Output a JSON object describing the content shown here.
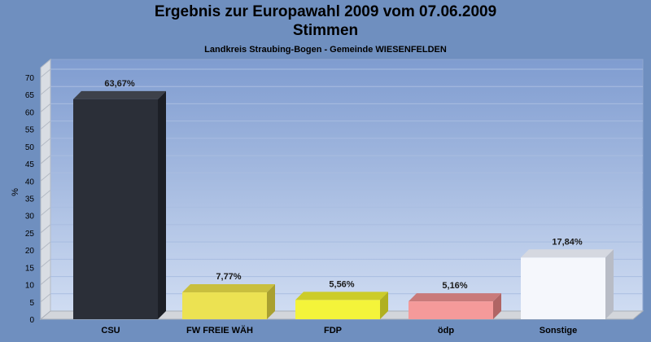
{
  "chart_data": {
    "type": "bar",
    "title": "Ergebnis zur Europawahl 2009 vom 07.06.2009",
    "title_line2": "Stimmen",
    "subtitle": "Landkreis Straubing-Bogen - Gemeinde WIESENFELDEN",
    "ylabel": "%",
    "xlabel": "",
    "ylim": [
      0,
      70
    ],
    "yticks": [
      0,
      5,
      10,
      15,
      20,
      25,
      30,
      35,
      40,
      45,
      50,
      55,
      60,
      65,
      70
    ],
    "grid": true,
    "legend": "none",
    "categories": [
      "CSU",
      "FW FREIE WÄH",
      "FDP",
      "ödp",
      "Sonstige"
    ],
    "values": [
      63.67,
      7.77,
      5.56,
      5.16,
      17.84
    ],
    "value_labels": [
      "63,67%",
      "7,77%",
      "5,56%",
      "5,16%",
      "17,84%"
    ],
    "colors": [
      "#2b2f38",
      "#ece252",
      "#f4f43a",
      "#f59a9a",
      "#f5f7fc"
    ],
    "colors_top": [
      "#3d414a",
      "#c9bf3e",
      "#cccc2a",
      "#c97a7a",
      "#d5d8e0"
    ],
    "colors_side": [
      "#1c1f26",
      "#a9a030",
      "#b0b020",
      "#b06565",
      "#b8bcc6"
    ]
  }
}
